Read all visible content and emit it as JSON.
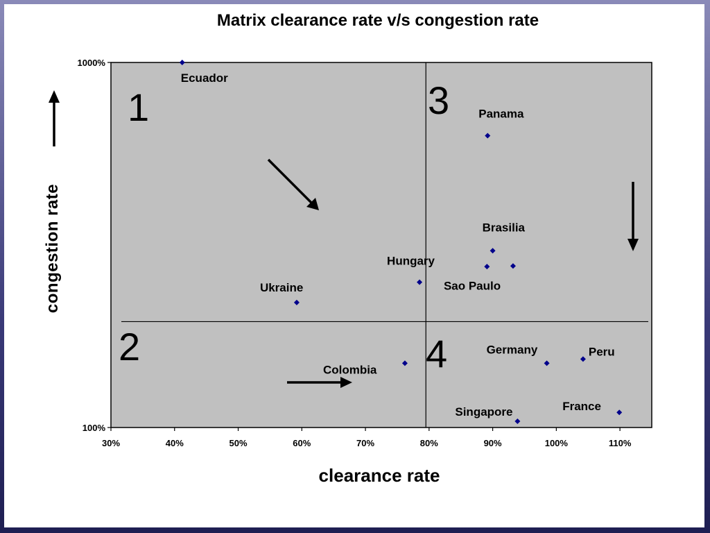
{
  "chart_data": {
    "type": "scatter",
    "title": "Matrix clearance rate v/s congestion rate",
    "xlabel": "clearance rate",
    "ylabel": "congestion rate",
    "x_ticks": [
      "30%",
      "40%",
      "50%",
      "60%",
      "70%",
      "80%",
      "90%",
      "100%",
      "110%"
    ],
    "y_ticks": [
      "100%",
      "1000%"
    ],
    "xlim": [
      30,
      115
    ],
    "ylim": [
      100,
      1000
    ],
    "y_scale": "log",
    "grid": false,
    "marker_color": "#00008b",
    "plot_background": "#c0c0c0",
    "divider_x": 79.5,
    "divider_y": 195,
    "quadrant_labels": [
      "1",
      "2",
      "3",
      "4"
    ],
    "points": [
      {
        "label": "Ecuador",
        "x": 41.2,
        "y": 1000
      },
      {
        "label": "Panama",
        "x": 89.2,
        "y": 630
      },
      {
        "label": "Brasilia",
        "x": 90.0,
        "y": 305
      },
      {
        "label": "Hungary",
        "x": 78.5,
        "y": 250
      },
      {
        "label": "Sao Paulo",
        "x": 93.2,
        "y": 277
      },
      {
        "label": "",
        "x": 89.1,
        "y": 276
      },
      {
        "label": "Ukraine",
        "x": 59.2,
        "y": 220
      },
      {
        "label": "Colombia",
        "x": 76.2,
        "y": 150
      },
      {
        "label": "Germany",
        "x": 98.5,
        "y": 150
      },
      {
        "label": "Peru",
        "x": 104.2,
        "y": 154
      },
      {
        "label": "France",
        "x": 109.9,
        "y": 110
      },
      {
        "label": "Singapore",
        "x": 93.9,
        "y": 104
      }
    ]
  }
}
